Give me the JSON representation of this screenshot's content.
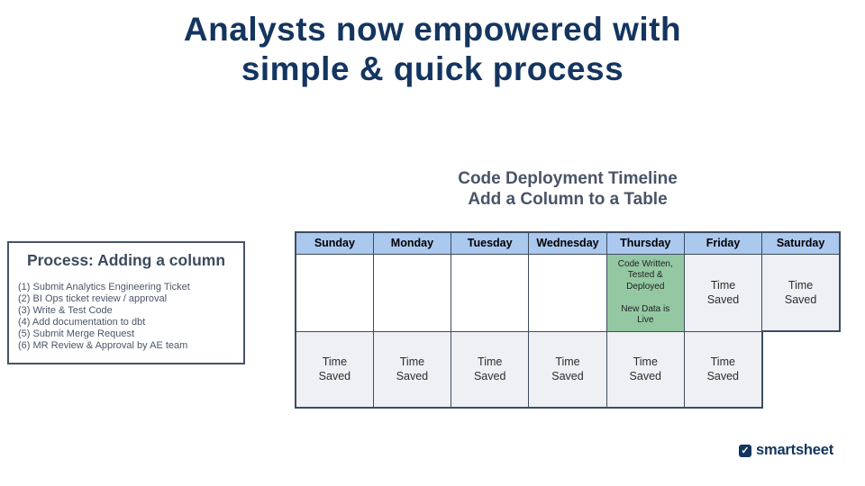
{
  "slide": {
    "title": "Analysts now empowered with\nsimple & quick process"
  },
  "process_box": {
    "title": "Process: Adding a column",
    "steps": [
      "(1) Submit Analytics Engineering Ticket",
      "(2) BI Ops ticket review / approval",
      "(3) Write & Test Code",
      "(4) Add documentation to dbt",
      "(5) Submit Merge Request",
      "(6) MR Review & Approval by AE team"
    ]
  },
  "timeline": {
    "heading": "Code Deployment Timeline\nAdd a Column to a Table",
    "days": [
      "Sunday",
      "Monday",
      "Tuesday",
      "Wednesday",
      "Thursday",
      "Friday",
      "Saturday"
    ],
    "row1": {
      "thursday": "Code Written,\nTested &\nDeployed\n\nNew Data is\nLive",
      "friday": "Time\nSaved",
      "saturday": "Time\nSaved"
    },
    "row2": [
      "Time\nSaved",
      "Time\nSaved",
      "Time\nSaved",
      "Time\nSaved",
      "Time\nSaved",
      "Time\nSaved"
    ]
  },
  "footer": {
    "brand": "smartsheet",
    "logo_icon": "checked-checkbox-icon",
    "check_glyph": "✓"
  },
  "colors": {
    "title_navy": "#14355f",
    "heading_slate": "#4a5468",
    "header_blue": "#abc8ef",
    "green_cell": "#94c8a3",
    "gray_cell": "#eef0f4",
    "table_border": "#3d4c60",
    "brand_navy": "#12355e"
  }
}
